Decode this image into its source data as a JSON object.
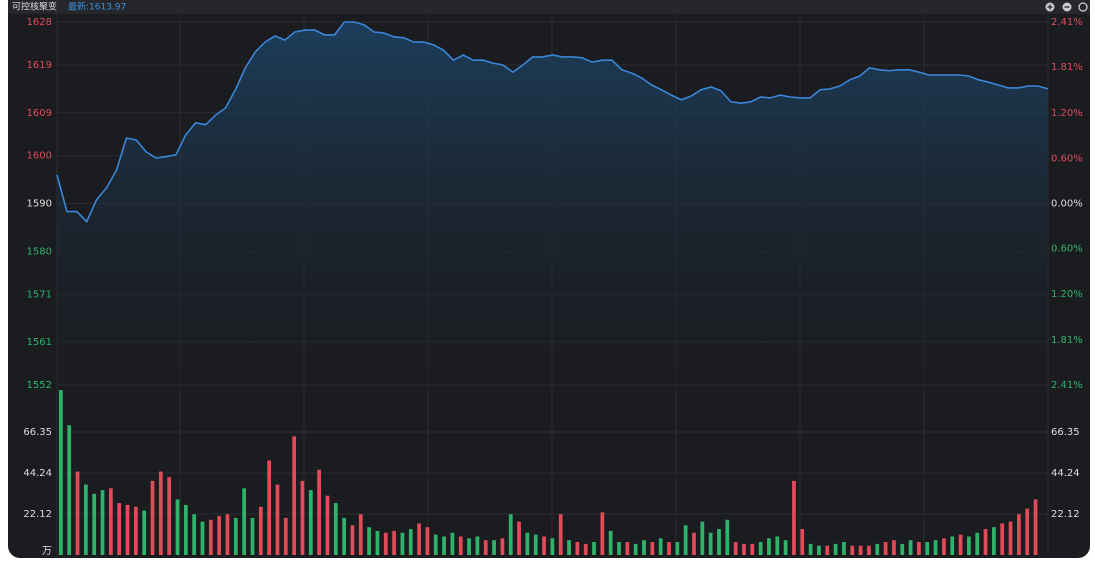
{
  "chart_data": [
    {
      "type": "line",
      "title": "可控核聚变",
      "subtitle": "最新:1613.97",
      "color": "#3a86d8",
      "up_color": "#e04a59",
      "down_color": "#2fb36a",
      "values": [
        1596,
        1588.3,
        1588.3,
        1586.2,
        1590.8,
        1593.3,
        1597,
        1603.7,
        1603.3,
        1600.8,
        1599.5,
        1599.8,
        1600.2,
        1604.4,
        1606.9,
        1606.5,
        1608.5,
        1610,
        1613.8,
        1618.4,
        1621.7,
        1623.8,
        1625.1,
        1624.2,
        1625.9,
        1626.3,
        1626.3,
        1625.3,
        1625.3,
        1628,
        1628,
        1627.4,
        1625.9,
        1625.7,
        1624.9,
        1624.7,
        1623.8,
        1623.8,
        1623.2,
        1622.1,
        1620,
        1621.1,
        1620,
        1620,
        1619.4,
        1619,
        1617.5,
        1619,
        1620.7,
        1620.7,
        1621.1,
        1620.7,
        1620.7,
        1620.5,
        1619.6,
        1620,
        1620,
        1618,
        1617.3,
        1616.3,
        1614.8,
        1613.8,
        1612.7,
        1611.7,
        1612.5,
        1613.8,
        1614.4,
        1613.6,
        1611.3,
        1611,
        1611.3,
        1612.3,
        1612.1,
        1612.7,
        1612.3,
        1612.1,
        1612.1,
        1613.8,
        1614,
        1614.6,
        1615.9,
        1616.7,
        1618.4,
        1618,
        1617.8,
        1618,
        1618,
        1617.5,
        1616.9,
        1616.9,
        1616.9,
        1616.9,
        1616.7,
        1615.9,
        1615.4,
        1614.8,
        1614.2,
        1614.2,
        1614.6,
        1614.6,
        1614
      ],
      "ylim": [
        1552,
        1628
      ],
      "yticks": [
        1628,
        1619,
        1609,
        1600,
        1590,
        1580,
        1571,
        1561,
        1552
      ],
      "y2lim": [
        -2.41,
        2.41
      ],
      "y2ticks": [
        {
          "value": 2.41,
          "label": "2.41%"
        },
        {
          "value": 1.81,
          "label": "1.81%"
        },
        {
          "value": 1.2,
          "label": "1.20%"
        },
        {
          "value": 0.6,
          "label": "0.60%"
        },
        {
          "value": 0,
          "label": "0.00%"
        },
        {
          "value": -0.6,
          "label": "0.60%"
        },
        {
          "value": -1.2,
          "label": "1.20%"
        },
        {
          "value": -1.81,
          "label": "1.81%"
        },
        {
          "value": -2.41,
          "label": "2.41%"
        }
      ],
      "grid": true
    },
    {
      "type": "bar",
      "values": [
        89,
        70,
        45,
        38,
        33,
        35,
        36,
        28,
        27,
        26,
        24,
        40,
        45,
        42,
        30,
        27,
        22,
        18,
        19,
        21,
        22,
        20,
        36,
        20,
        26,
        51,
        38,
        20,
        64,
        40,
        35,
        46,
        32,
        28,
        20,
        16,
        22,
        15,
        13,
        12,
        13,
        12,
        14,
        17,
        15,
        11,
        10,
        12,
        10,
        9,
        10,
        8,
        8,
        9,
        22,
        18,
        12,
        11,
        10,
        9,
        22,
        8,
        7,
        6,
        7,
        23,
        13,
        7,
        7,
        6,
        8,
        7,
        9,
        7,
        7,
        16,
        12,
        18,
        12,
        14,
        19,
        7,
        6,
        6,
        7,
        9,
        10,
        8,
        40,
        14,
        6,
        5,
        5,
        6,
        7,
        5,
        5,
        5,
        6,
        7,
        8,
        6,
        8,
        7,
        7,
        8,
        9,
        10,
        11,
        10,
        12,
        14,
        15,
        17,
        18,
        22,
        25,
        30
      ],
      "colors": [
        "#2fb36a",
        "#2fb36a",
        "#e04a59",
        "#2fb36a",
        "#2fb36a",
        "#2fb36a",
        "#e04a59",
        "#e04a59",
        "#e04a59",
        "#e04a59",
        "#2fb36a",
        "#e04a59",
        "#e04a59",
        "#e04a59",
        "#2fb36a",
        "#2fb36a",
        "#2fb36a",
        "#2fb36a",
        "#e04a59",
        "#e04a59",
        "#e04a59",
        "#2fb36a",
        "#2fb36a",
        "#2fb36a",
        "#e04a59",
        "#e04a59",
        "#e04a59",
        "#e04a59",
        "#e04a59",
        "#e04a59",
        "#2fb36a",
        "#e04a59",
        "#e04a59",
        "#2fb36a",
        "#2fb36a",
        "#e04a59",
        "#e04a59",
        "#2fb36a",
        "#2fb36a",
        "#e04a59",
        "#e04a59",
        "#2fb36a",
        "#2fb36a",
        "#e04a59",
        "#e04a59",
        "#2fb36a",
        "#2fb36a",
        "#2fb36a",
        "#e04a59",
        "#2fb36a",
        "#2fb36a",
        "#e04a59",
        "#2fb36a",
        "#e04a59",
        "#2fb36a",
        "#e04a59",
        "#2fb36a",
        "#2fb36a",
        "#e04a59",
        "#2fb36a",
        "#e04a59",
        "#2fb36a",
        "#e04a59",
        "#e04a59",
        "#2fb36a",
        "#e04a59",
        "#2fb36a",
        "#2fb36a",
        "#e04a59",
        "#2fb36a",
        "#2fb36a",
        "#e04a59",
        "#2fb36a",
        "#e04a59",
        "#2fb36a",
        "#2fb36a",
        "#e04a59",
        "#2fb36a",
        "#2fb36a",
        "#2fb36a",
        "#2fb36a",
        "#e04a59",
        "#e04a59",
        "#e04a59",
        "#2fb36a",
        "#2fb36a",
        "#2fb36a",
        "#2fb36a",
        "#e04a59",
        "#e04a59",
        "#2fb36a",
        "#2fb36a",
        "#e04a59",
        "#2fb36a",
        "#2fb36a",
        "#e04a59",
        "#e04a59",
        "#e04a59",
        "#2fb36a",
        "#e04a59",
        "#e04a59",
        "#2fb36a",
        "#2fb36a",
        "#e04a59",
        "#2fb36a",
        "#2fb36a",
        "#e04a59",
        "#2fb36a",
        "#e04a59",
        "#2fb36a",
        "#2fb36a",
        "#e04a59",
        "#2fb36a",
        "#e04a59",
        "#e04a59",
        "#e04a59",
        "#e04a59",
        "#e04a59"
      ],
      "ylim": [
        0,
        89
      ],
      "yticks": [
        {
          "value": 0,
          "label": "万"
        },
        22.12,
        44.24,
        66.35
      ],
      "y2ticks": [
        22.12,
        44.24,
        66.35
      ],
      "grid": true
    }
  ]
}
